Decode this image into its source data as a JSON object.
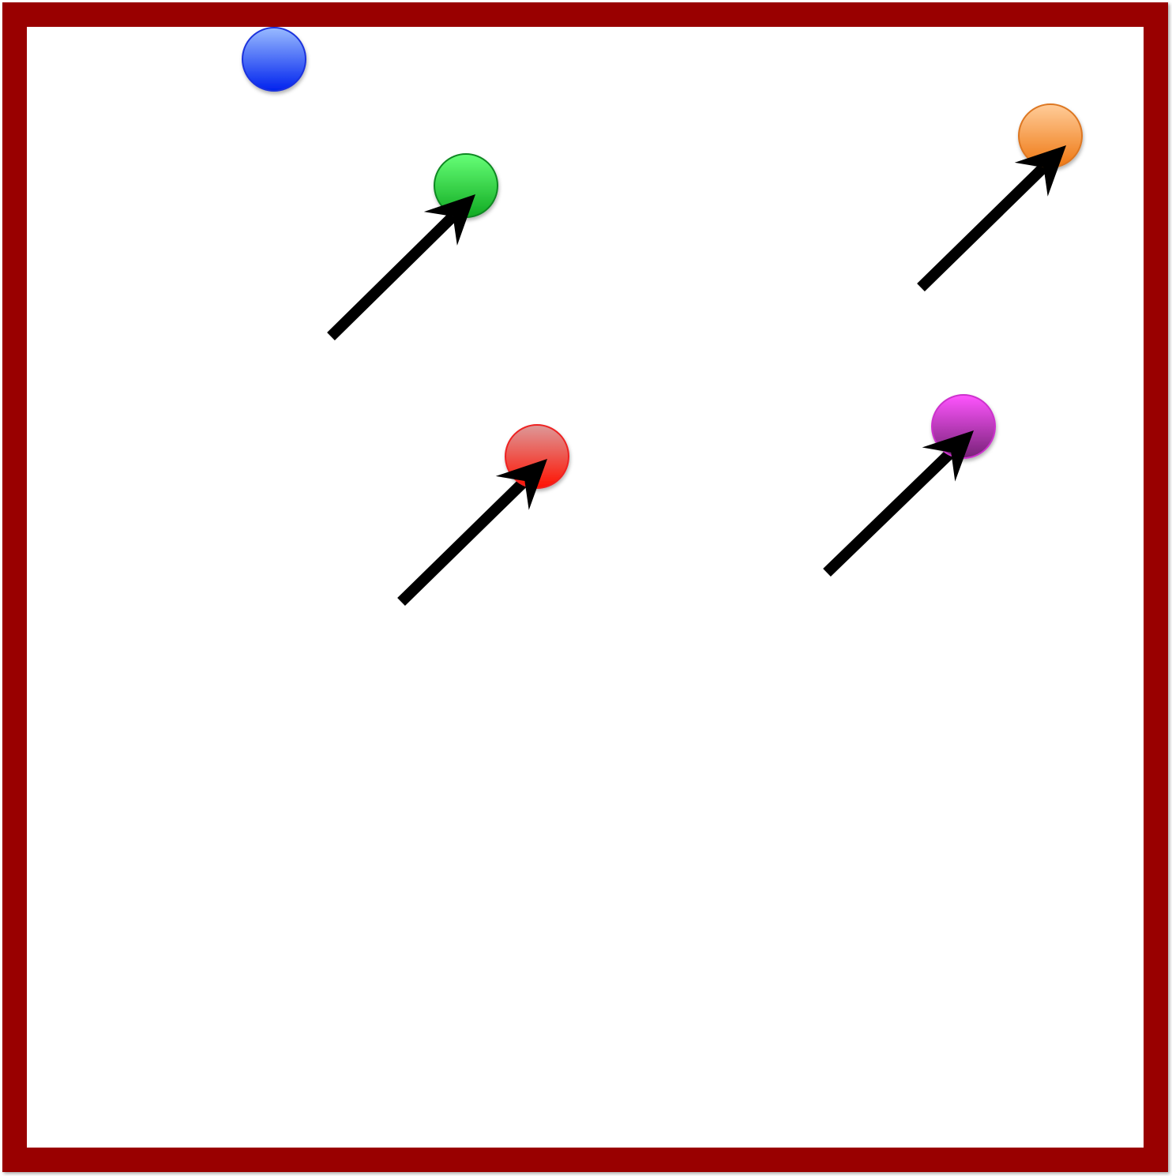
{
  "frame": {
    "border_color": "#990000",
    "background_color": "#ffffff"
  },
  "balls": [
    {
      "name": "blue-ball",
      "color_light": "#99bbff",
      "color_dark": "#0022ee",
      "stroke": "#1a33dd",
      "has_arrow": false
    },
    {
      "name": "green-ball",
      "color_light": "#66ff77",
      "color_dark": "#11aa22",
      "stroke": "#118822",
      "has_arrow": true
    },
    {
      "name": "orange-ball",
      "color_light": "#ffcc99",
      "color_dark": "#ee7711",
      "stroke": "#dd7722",
      "has_arrow": true
    },
    {
      "name": "red-ball",
      "color_light": "#dd9999",
      "color_dark": "#ff1100",
      "stroke": "#ee2222",
      "has_arrow": true
    },
    {
      "name": "magenta-ball",
      "color_light": "#ff55ff",
      "color_dark": "#772277",
      "stroke": "#cc33cc",
      "has_arrow": true
    }
  ],
  "arrow_color": "#000000"
}
